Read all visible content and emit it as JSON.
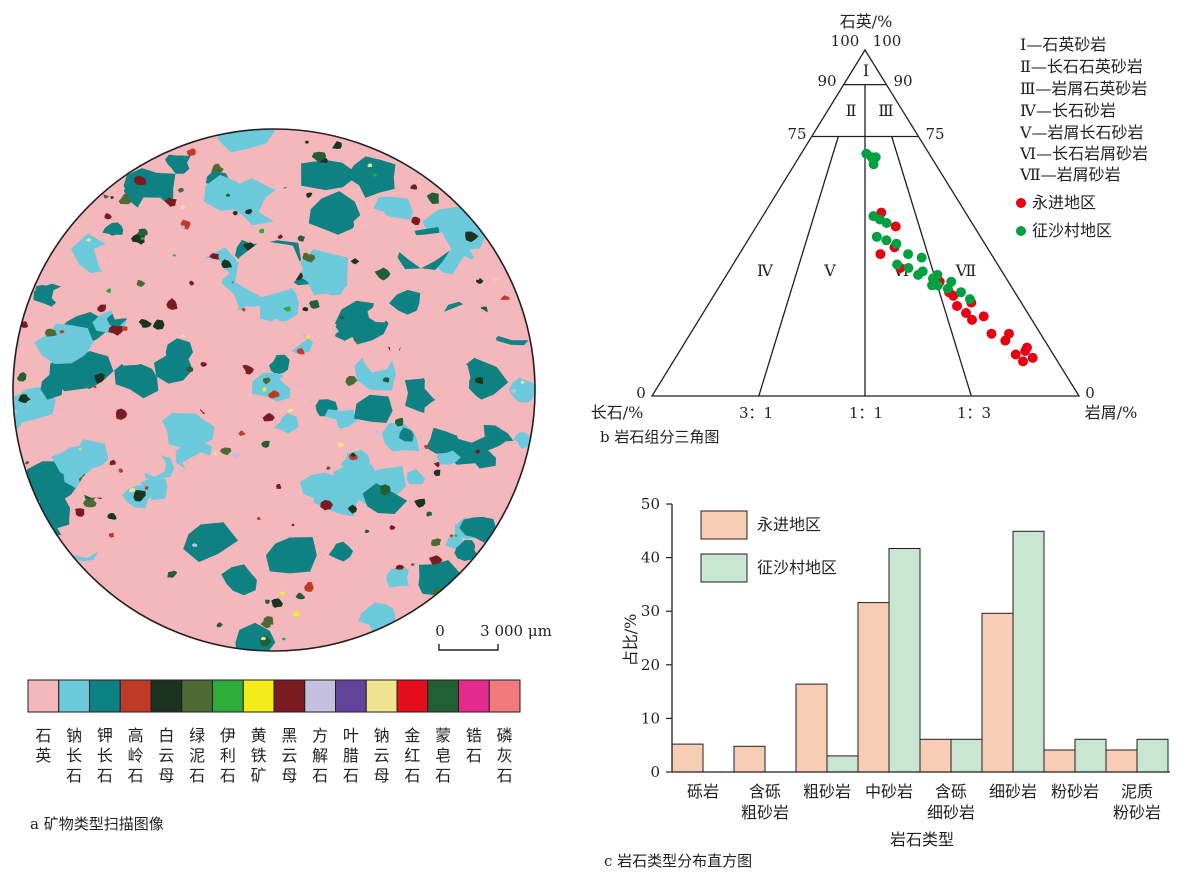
{
  "colors": {
    "ink": "#231f20",
    "yongjin": "#e60012",
    "zhengshacun": "#00a040",
    "bar_yongjin": "#f8cdb6",
    "bar_zhengshacun": "#c8e6d2"
  },
  "panel_a": {
    "caption": "a 矿物类型扫描图像",
    "scale_start": "0",
    "scale_end": "3 000 μm",
    "minerals": [
      {
        "name": "石英",
        "color": "#f4b8bc"
      },
      {
        "name": "钠长石",
        "color": "#6cc9dc"
      },
      {
        "name": "钾长石",
        "color": "#0e8183"
      },
      {
        "name": "高岭石",
        "color": "#c03a25"
      },
      {
        "name": "白云母",
        "color": "#1b3421"
      },
      {
        "name": "绿泥石",
        "color": "#4e6a34"
      },
      {
        "name": "伊利石",
        "color": "#2fad3a"
      },
      {
        "name": "黄铁矿",
        "color": "#f2ec1b"
      },
      {
        "name": "黑云母",
        "color": "#7a1b22"
      },
      {
        "name": "方解石",
        "color": "#c3c0df"
      },
      {
        "name": "叶腊石",
        "color": "#62449a"
      },
      {
        "name": "钠云母",
        "color": "#efe38f"
      },
      {
        "name": "金红石",
        "color": "#e40d1c"
      },
      {
        "name": "蒙皂石",
        "color": "#235f35"
      },
      {
        "name": "锆石",
        "color": "#e52a8e"
      },
      {
        "name": "磷灰石",
        "color": "#f07a7e"
      }
    ]
  },
  "chart_data": [
    {
      "type": "scatter",
      "subtype": "ternary",
      "caption": "b 岩石组分三角图",
      "apex_label": "石英/%",
      "left_label": "长石/%",
      "right_label": "岩屑/%",
      "tick_labels": {
        "q100_left": "100",
        "q100_right": "100",
        "q90_left": "90",
        "q90_right": "90",
        "q75_left": "75",
        "q75_right": "75",
        "left_zero": "0",
        "right_zero": "0",
        "ratio_3_1": "3：1",
        "ratio_1_1": "1：1",
        "ratio_1_3": "1：3"
      },
      "field_labels": [
        "Ⅰ",
        "Ⅱ",
        "Ⅲ",
        "Ⅳ",
        "Ⅴ",
        "Ⅵ",
        "Ⅶ"
      ],
      "classes": [
        "Ⅰ—石英砂岩",
        "Ⅱ—长石石英砂岩",
        "Ⅲ—岩屑石英砂岩",
        "Ⅳ—长石砂岩",
        "Ⅴ—岩屑长石砂岩",
        "Ⅵ—长石岩屑砂岩",
        "Ⅶ—岩屑砂岩"
      ],
      "series": [
        {
          "name": "永进地区",
          "points": [
            {
              "q": 53,
              "r": 0.58
            },
            {
              "q": 49,
              "r": 0.64
            },
            {
              "q": 41,
              "r": 0.56
            },
            {
              "q": 43,
              "r": 0.62
            },
            {
              "q": 37,
              "r": 0.63
            },
            {
              "q": 33,
              "r": 0.76
            },
            {
              "q": 30,
              "r": 0.78
            },
            {
              "q": 29,
              "r": 0.79
            },
            {
              "q": 27,
              "r": 0.84
            },
            {
              "q": 26,
              "r": 0.79
            },
            {
              "q": 24,
              "r": 0.81
            },
            {
              "q": 23,
              "r": 0.86
            },
            {
              "q": 22,
              "r": 0.82
            },
            {
              "q": 18,
              "r": 0.86
            },
            {
              "q": 18,
              "r": 0.91
            },
            {
              "q": 16,
              "r": 0.89
            },
            {
              "q": 14,
              "r": 0.94
            },
            {
              "q": 12,
              "r": 0.9
            },
            {
              "q": 13,
              "r": 0.93
            },
            {
              "q": 10,
              "r": 0.91
            },
            {
              "q": 11,
              "r": 0.94
            }
          ]
        },
        {
          "name": "征沙村地区",
          "points": [
            {
              "q": 70,
              "r": 0.51
            },
            {
              "q": 69,
              "r": 0.55
            },
            {
              "q": 69,
              "r": 0.58
            },
            {
              "q": 67,
              "r": 0.56
            },
            {
              "q": 52,
              "r": 0.54
            },
            {
              "q": 51,
              "r": 0.57
            },
            {
              "q": 50,
              "r": 0.6
            },
            {
              "q": 46,
              "r": 0.55
            },
            {
              "q": 45,
              "r": 0.59
            },
            {
              "q": 44,
              "r": 0.63
            },
            {
              "q": 41,
              "r": 0.67
            },
            {
              "q": 40,
              "r": 0.72
            },
            {
              "q": 38,
              "r": 0.62
            },
            {
              "q": 37,
              "r": 0.66
            },
            {
              "q": 36,
              "r": 0.71
            },
            {
              "q": 35,
              "r": 0.69
            },
            {
              "q": 35,
              "r": 0.76
            },
            {
              "q": 34,
              "r": 0.74
            },
            {
              "q": 33,
              "r": 0.8
            },
            {
              "q": 32,
              "r": 0.73
            },
            {
              "q": 32,
              "r": 0.75
            },
            {
              "q": 31,
              "r": 0.78
            },
            {
              "q": 30,
              "r": 0.82
            },
            {
              "q": 28,
              "r": 0.84
            }
          ]
        }
      ]
    },
    {
      "type": "bar",
      "caption": "c 岩石类型分布直方图",
      "xlabel": "岩石类型",
      "ylabel": "占比/%",
      "ylim": [
        0,
        50
      ],
      "yticks": [
        0,
        10,
        20,
        30,
        40,
        50
      ],
      "categories": [
        "砾岩",
        "含砾\n粗砂岩",
        "粗砂岩",
        "中砂岩",
        "含砾\n细砂岩",
        "细砂岩",
        "粉砂岩",
        "泥质\n粉砂岩"
      ],
      "series": [
        {
          "name": "永进地区",
          "values": [
            5.2,
            4.8,
            16.4,
            31.6,
            6.1,
            29.6,
            4.1,
            4.1
          ]
        },
        {
          "name": "征沙村地区",
          "values": [
            0,
            0,
            3.0,
            41.7,
            6.1,
            44.9,
            6.1,
            6.1
          ]
        }
      ]
    }
  ]
}
